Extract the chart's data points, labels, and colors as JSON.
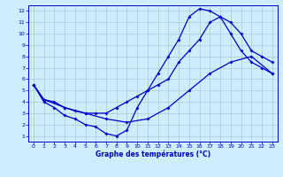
{
  "xlabel": "Graphe des températures (°C)",
  "background_color": "#cceeff",
  "grid_color": "#aacccc",
  "line_color": "#0000cc",
  "xlim": [
    -0.5,
    23.5
  ],
  "ylim": [
    0.5,
    12.5
  ],
  "xticks": [
    0,
    1,
    2,
    3,
    4,
    5,
    6,
    7,
    8,
    9,
    10,
    11,
    12,
    13,
    14,
    15,
    16,
    17,
    18,
    19,
    20,
    21,
    22,
    23
  ],
  "yticks": [
    1,
    2,
    3,
    4,
    5,
    6,
    7,
    8,
    9,
    10,
    11,
    12
  ],
  "line1_x": [
    0,
    1,
    2,
    3,
    4,
    5,
    6,
    7,
    8,
    9,
    10,
    11,
    12,
    13,
    14,
    15,
    16,
    17,
    18,
    19,
    20,
    21,
    22,
    23
  ],
  "line1_y": [
    5.5,
    4.2,
    4.0,
    3.5,
    3.2,
    3.0,
    3.0,
    3.0,
    3.5,
    4.0,
    4.5,
    5.0,
    5.5,
    6.0,
    7.5,
    8.5,
    9.5,
    11.0,
    11.5,
    11.0,
    10.0,
    8.5,
    8.0,
    7.5
  ],
  "line2_x": [
    0,
    1,
    3,
    5,
    7,
    9,
    11,
    13,
    15,
    17,
    19,
    21,
    23
  ],
  "line2_y": [
    5.5,
    4.2,
    3.5,
    3.0,
    2.5,
    2.2,
    2.5,
    3.5,
    5.0,
    6.5,
    7.5,
    8.0,
    6.5
  ],
  "line3_x": [
    0,
    1,
    2,
    3,
    4,
    5,
    6,
    7,
    8,
    9,
    10,
    11,
    12,
    13,
    14,
    15,
    16,
    17,
    18,
    19,
    20,
    21,
    22,
    23
  ],
  "line3_y": [
    5.5,
    4.0,
    3.5,
    2.8,
    2.5,
    2.0,
    1.8,
    1.2,
    1.0,
    1.5,
    3.5,
    5.0,
    6.5,
    8.0,
    9.5,
    11.5,
    12.2,
    12.0,
    11.5,
    10.0,
    8.5,
    7.5,
    7.0,
    6.5
  ]
}
